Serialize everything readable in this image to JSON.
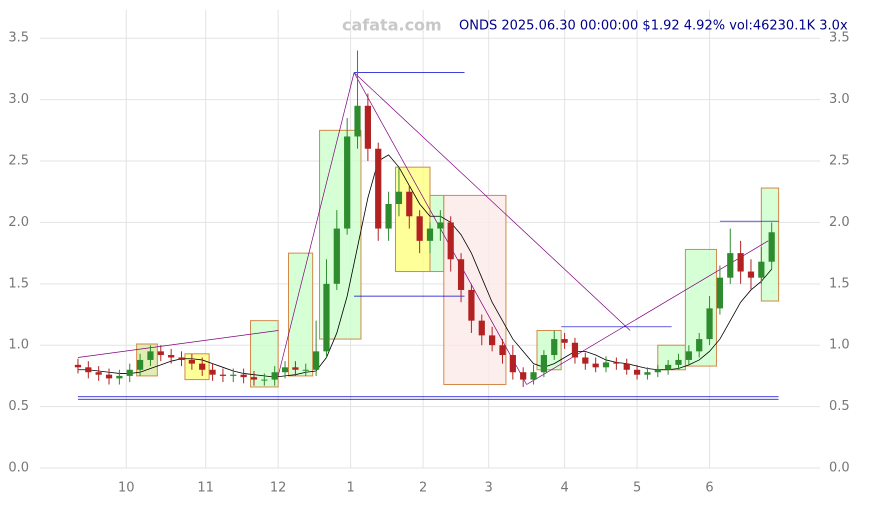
{
  "chart_data": {
    "type": "candlestick",
    "title": "ONDS 2025.06.30 00:00:00 $1.92 4.92% vol:46230.1K 3.0x",
    "watermark": "cafata.com",
    "xlim": [
      -11,
      215
    ],
    "ylim": [
      0,
      3.73
    ],
    "xticks": [
      {
        "value": 14,
        "label": "10"
      },
      {
        "value": 37,
        "label": "11"
      },
      {
        "value": 58,
        "label": "12"
      },
      {
        "value": 79,
        "label": "1"
      },
      {
        "value": 100,
        "label": "2"
      },
      {
        "value": 119,
        "label": "3"
      },
      {
        "value": 141,
        "label": "4"
      },
      {
        "value": 162,
        "label": "5"
      },
      {
        "value": 183,
        "label": "6"
      }
    ],
    "yticks": [
      {
        "value": 0,
        "label": "0.0"
      },
      {
        "value": 0.5,
        "label": "0.5"
      },
      {
        "value": 1,
        "label": "1.0"
      },
      {
        "value": 1.5,
        "label": "1.5"
      },
      {
        "value": 2,
        "label": "2.0"
      },
      {
        "value": 2.5,
        "label": "2.5"
      },
      {
        "value": 3,
        "label": "3.0"
      },
      {
        "value": 3.5,
        "label": "3.5"
      }
    ],
    "grid": true,
    "up_color": "#2e8b2e",
    "down_color": "#b22222",
    "ma_color": "#000000",
    "x": [
      0,
      3,
      6,
      9,
      12,
      15,
      18,
      21,
      24,
      27,
      30,
      33,
      36,
      39,
      42,
      45,
      48,
      51,
      54,
      57,
      60,
      63,
      66,
      69,
      72,
      75,
      78,
      81,
      84,
      87,
      90,
      93,
      96,
      99,
      102,
      105,
      108,
      111,
      114,
      117,
      120,
      123,
      126,
      129,
      132,
      135,
      138,
      141,
      144,
      147,
      150,
      153,
      156,
      159,
      162,
      165,
      168,
      171,
      174,
      177,
      180,
      183,
      186,
      189,
      192,
      195,
      198,
      201
    ],
    "open": [
      0.84,
      0.82,
      0.78,
      0.76,
      0.73,
      0.75,
      0.8,
      0.88,
      0.95,
      0.92,
      0.9,
      0.88,
      0.85,
      0.8,
      0.76,
      0.75,
      0.76,
      0.74,
      0.72,
      0.72,
      0.78,
      0.82,
      0.8,
      0.8,
      0.95,
      1.5,
      1.95,
      2.7,
      2.95,
      2.6,
      1.95,
      2.15,
      2.25,
      2.05,
      1.85,
      1.95,
      2.0,
      1.7,
      1.45,
      1.2,
      1.08,
      1.0,
      0.92,
      0.78,
      0.72,
      0.78,
      0.92,
      1.05,
      1.02,
      0.9,
      0.85,
      0.82,
      0.86,
      0.85,
      0.8,
      0.76,
      0.78,
      0.8,
      0.84,
      0.88,
      0.95,
      1.05,
      1.3,
      1.55,
      1.75,
      1.6,
      1.55,
      1.68
    ],
    "high": [
      0.89,
      0.87,
      0.83,
      0.81,
      0.8,
      0.85,
      0.93,
      1.0,
      1.0,
      0.97,
      0.95,
      0.93,
      0.9,
      0.85,
      0.81,
      0.81,
      0.81,
      0.79,
      0.77,
      0.83,
      0.87,
      0.87,
      0.85,
      1.2,
      1.7,
      2.1,
      2.85,
      3.4,
      3.05,
      2.65,
      2.25,
      2.45,
      2.3,
      2.1,
      2.0,
      2.1,
      2.05,
      1.75,
      1.5,
      1.25,
      1.15,
      1.05,
      1.0,
      0.82,
      0.84,
      0.96,
      1.12,
      1.1,
      1.06,
      0.94,
      0.9,
      0.91,
      0.9,
      0.89,
      0.84,
      0.82,
      0.84,
      0.88,
      0.93,
      1.0,
      1.1,
      1.4,
      1.65,
      1.95,
      1.85,
      1.7,
      1.8,
      2.0
    ],
    "low": [
      0.77,
      0.73,
      0.71,
      0.68,
      0.68,
      0.7,
      0.75,
      0.83,
      0.87,
      0.85,
      0.83,
      0.8,
      0.75,
      0.71,
      0.7,
      0.7,
      0.69,
      0.67,
      0.67,
      0.67,
      0.73,
      0.75,
      0.75,
      0.75,
      0.9,
      1.45,
      1.9,
      2.6,
      2.5,
      1.85,
      1.85,
      2.05,
      1.95,
      1.75,
      1.75,
      1.85,
      1.6,
      1.35,
      1.1,
      1.0,
      0.95,
      0.85,
      0.72,
      0.66,
      0.68,
      0.74,
      0.88,
      0.97,
      0.85,
      0.8,
      0.78,
      0.78,
      0.8,
      0.76,
      0.72,
      0.72,
      0.74,
      0.76,
      0.8,
      0.84,
      0.9,
      1.0,
      1.25,
      1.5,
      1.5,
      1.45,
      1.5,
      1.62
    ],
    "close": [
      0.82,
      0.78,
      0.76,
      0.73,
      0.75,
      0.8,
      0.88,
      0.95,
      0.92,
      0.9,
      0.88,
      0.85,
      0.8,
      0.76,
      0.75,
      0.76,
      0.74,
      0.72,
      0.72,
      0.78,
      0.82,
      0.8,
      0.8,
      0.95,
      1.5,
      1.95,
      2.7,
      2.95,
      2.6,
      1.95,
      2.15,
      2.25,
      2.05,
      1.85,
      1.95,
      2.0,
      1.7,
      1.45,
      1.2,
      1.08,
      1.0,
      0.92,
      0.78,
      0.72,
      0.78,
      0.92,
      1.05,
      1.02,
      0.9,
      0.85,
      0.82,
      0.86,
      0.85,
      0.8,
      0.76,
      0.78,
      0.8,
      0.84,
      0.88,
      0.95,
      1.05,
      1.3,
      1.55,
      1.75,
      1.6,
      1.55,
      1.68,
      1.92
    ],
    "ma": [
      0.8,
      0.8,
      0.79,
      0.78,
      0.77,
      0.77,
      0.78,
      0.81,
      0.84,
      0.87,
      0.89,
      0.89,
      0.88,
      0.85,
      0.82,
      0.79,
      0.77,
      0.76,
      0.75,
      0.74,
      0.75,
      0.76,
      0.78,
      0.79,
      0.9,
      1.1,
      1.4,
      1.8,
      2.2,
      2.5,
      2.55,
      2.45,
      2.3,
      2.15,
      2.05,
      2.05,
      2.0,
      1.9,
      1.75,
      1.55,
      1.35,
      1.2,
      1.05,
      0.95,
      0.85,
      0.82,
      0.85,
      0.9,
      0.95,
      0.95,
      0.92,
      0.88,
      0.86,
      0.85,
      0.83,
      0.81,
      0.8,
      0.8,
      0.81,
      0.84,
      0.88,
      0.95,
      1.05,
      1.2,
      1.35,
      1.45,
      1.52,
      1.62
    ],
    "zones": [
      {
        "x": [
          17,
          23
        ],
        "y": [
          0.75,
          1.01
        ],
        "color": "#d8e8a0"
      },
      {
        "x": [
          31,
          38
        ],
        "y": [
          0.72,
          0.93
        ],
        "color": "#ffff80"
      },
      {
        "x": [
          50,
          58
        ],
        "y": [
          0.66,
          1.2
        ],
        "color": "#ccffcc"
      },
      {
        "x": [
          61,
          68
        ],
        "y": [
          0.75,
          1.75
        ],
        "color": "#ccffcc"
      },
      {
        "x": [
          70,
          82
        ],
        "y": [
          1.05,
          2.75
        ],
        "color": "#ccffcc"
      },
      {
        "x": [
          92,
          102
        ],
        "y": [
          1.6,
          2.45
        ],
        "color": "#ffff80"
      },
      {
        "x": [
          102,
          106
        ],
        "y": [
          1.6,
          2.22
        ],
        "color": "#ccffcc"
      },
      {
        "x": [
          106,
          124
        ],
        "y": [
          0.68,
          2.22
        ],
        "color": "#fdeaea"
      },
      {
        "x": [
          133,
          140
        ],
        "y": [
          0.8,
          1.12
        ],
        "color": "#ccffcc"
      },
      {
        "x": [
          168,
          176
        ],
        "y": [
          0.8,
          1.0
        ],
        "color": "#ccffcc"
      },
      {
        "x": [
          176,
          185
        ],
        "y": [
          0.83,
          1.78
        ],
        "color": "#ccffcc"
      },
      {
        "x": [
          198,
          203
        ],
        "y": [
          1.36,
          2.28
        ],
        "color": "#ccffcc"
      }
    ],
    "trend_lines": [
      {
        "x": [
          0,
          58
        ],
        "y": [
          0.9,
          1.12
        ],
        "color": "#800080"
      },
      {
        "x": [
          58,
          80
        ],
        "y": [
          0.75,
          3.22
        ],
        "color": "#800080"
      },
      {
        "x": [
          80,
          160
        ],
        "y": [
          3.22,
          1.12
        ],
        "color": "#800080"
      },
      {
        "x": [
          80,
          130
        ],
        "y": [
          3.22,
          0.68
        ],
        "color": "#800080"
      },
      {
        "x": [
          130,
          200
        ],
        "y": [
          0.68,
          1.85
        ],
        "color": "#800080"
      },
      {
        "x": [
          80,
          112
        ],
        "y": [
          3.22,
          3.22
        ],
        "color": "#0000cd"
      },
      {
        "x": [
          80,
          112
        ],
        "y": [
          1.4,
          1.4
        ],
        "color": "#0000cd"
      },
      {
        "x": [
          140,
          172
        ],
        "y": [
          1.15,
          1.15
        ],
        "color": "#0000cd"
      },
      {
        "x": [
          186,
          203
        ],
        "y": [
          2.01,
          2.01
        ],
        "color": "#0000cd"
      },
      {
        "x": [
          0,
          203
        ],
        "y": [
          0.58,
          0.58
        ],
        "color": "#0000cd"
      },
      {
        "x": [
          0,
          203
        ],
        "y": [
          0.56,
          0.56
        ],
        "color": "#0000cd"
      }
    ]
  }
}
